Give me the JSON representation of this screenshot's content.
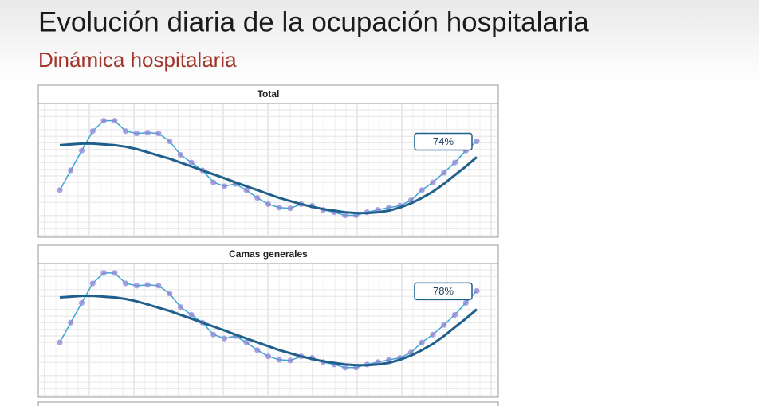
{
  "title": "Evolución diaria de la ocupación hospitalaria",
  "subtitle": "Dinámica hospitalaria",
  "chart_data": [
    {
      "type": "line",
      "title": "Total",
      "ylim": [
        38,
        87
      ],
      "grid": true,
      "annotation": {
        "value": 74,
        "label": "74%"
      },
      "series": [
        {
          "color": "#3aa6d6",
          "marker_color": "#8f84d6",
          "markers": true,
          "values": [
            55.2,
            62.8,
            70.4,
            77.9,
            81.9,
            81.9,
            77.9,
            77.0,
            77.3,
            77.0,
            74.0,
            68.8,
            65.8,
            62.8,
            58.2,
            56.7,
            57.6,
            55.2,
            52.2,
            49.8,
            48.5,
            48.2,
            49.8,
            49.2,
            47.6,
            46.7,
            45.5,
            45.5,
            46.7,
            47.6,
            48.5,
            49.2,
            51.3,
            55.2,
            58.2,
            61.9,
            65.8,
            70.4,
            74.0
          ]
        },
        {
          "color": "#1f5f8b",
          "markers": false,
          "values": [
            72.5,
            72.8,
            73.1,
            73.1,
            72.8,
            72.5,
            71.9,
            71.0,
            69.8,
            68.5,
            67.3,
            65.8,
            64.3,
            62.8,
            61.3,
            59.8,
            58.2,
            56.7,
            55.2,
            53.7,
            52.2,
            51.0,
            49.8,
            48.8,
            47.9,
            47.3,
            46.7,
            46.4,
            46.4,
            46.7,
            47.3,
            48.5,
            50.1,
            52.2,
            54.6,
            57.6,
            61.0,
            64.3,
            67.9
          ]
        }
      ]
    },
    {
      "type": "line",
      "title": "Camas generales",
      "ylim": [
        38,
        87
      ],
      "grid": true,
      "annotation": {
        "value": 78,
        "label": "78%"
      },
      "series": [
        {
          "color": "#3aa6d6",
          "marker_color": "#8f84d6",
          "markers": true,
          "values": [
            58.2,
            65.8,
            73.4,
            80.9,
            84.9,
            84.9,
            80.9,
            80.0,
            80.3,
            80.0,
            77.0,
            71.8,
            68.8,
            65.8,
            61.2,
            59.7,
            60.6,
            58.2,
            55.2,
            52.8,
            51.5,
            51.2,
            52.8,
            52.2,
            50.6,
            49.7,
            48.5,
            48.5,
            49.7,
            50.6,
            51.5,
            52.2,
            54.3,
            58.2,
            61.2,
            64.9,
            68.8,
            73.4,
            78.0
          ]
        },
        {
          "color": "#1f5f8b",
          "markers": false,
          "values": [
            75.5,
            75.8,
            76.1,
            76.1,
            75.8,
            75.5,
            74.9,
            74.0,
            72.8,
            71.5,
            70.3,
            68.8,
            67.3,
            65.8,
            64.3,
            62.8,
            61.2,
            59.7,
            58.2,
            56.7,
            55.2,
            54.0,
            52.8,
            51.8,
            50.9,
            50.3,
            49.7,
            49.4,
            49.4,
            49.7,
            50.3,
            51.5,
            53.1,
            55.2,
            57.6,
            60.6,
            64.0,
            67.3,
            70.9
          ]
        }
      ]
    }
  ]
}
